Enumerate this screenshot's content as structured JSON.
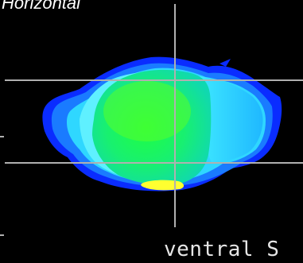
{
  "viewer": {
    "view_title": "Horizontal",
    "orientation_label": "ventral S"
  },
  "colors": {
    "background": "#000000",
    "crosshair": "#b0b0b0",
    "deep_blue": "#0a2cff",
    "blue": "#1a7bff",
    "cyan": "#2fd7ff",
    "light_cyan": "#5ff0ff",
    "green": "#10f05a",
    "lime": "#70ff20",
    "yellow": "#ffff30"
  }
}
